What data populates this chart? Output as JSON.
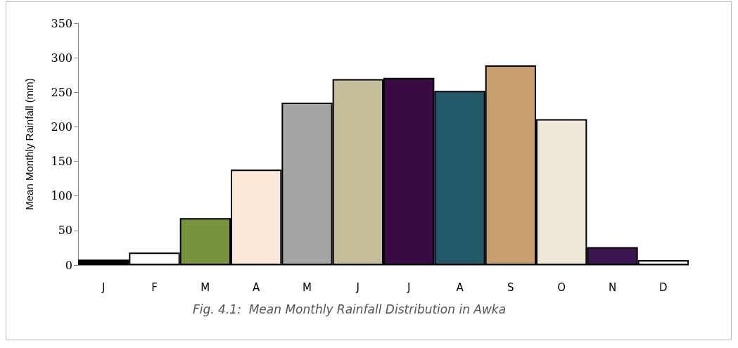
{
  "chart_data": {
    "type": "bar",
    "categories": [
      "J",
      "F",
      "M",
      "A",
      "M",
      "J",
      "J",
      "A",
      "S",
      "O",
      "N",
      "D"
    ],
    "values": [
      8,
      18,
      68,
      138,
      235,
      269,
      271,
      252,
      289,
      211,
      26,
      7
    ],
    "colors": [
      "#000000",
      "#ffffff",
      "#77933c",
      "#fde9d9",
      "#a5a5a5",
      "#c4bd97",
      "#3a0a45",
      "#215968",
      "#c8a070",
      "#eee8d8",
      "#3a1650",
      "#ffffff"
    ],
    "ylabel": "Mean Monthly Rainfall (mm)",
    "ylim": [
      0,
      350
    ],
    "yticks": [
      0,
      50,
      100,
      150,
      200,
      250,
      300,
      350
    ],
    "grid": false,
    "annotations": [
      "Fig. 4.1:  Mean Monthly Rainfall Distribution in Awka"
    ]
  }
}
